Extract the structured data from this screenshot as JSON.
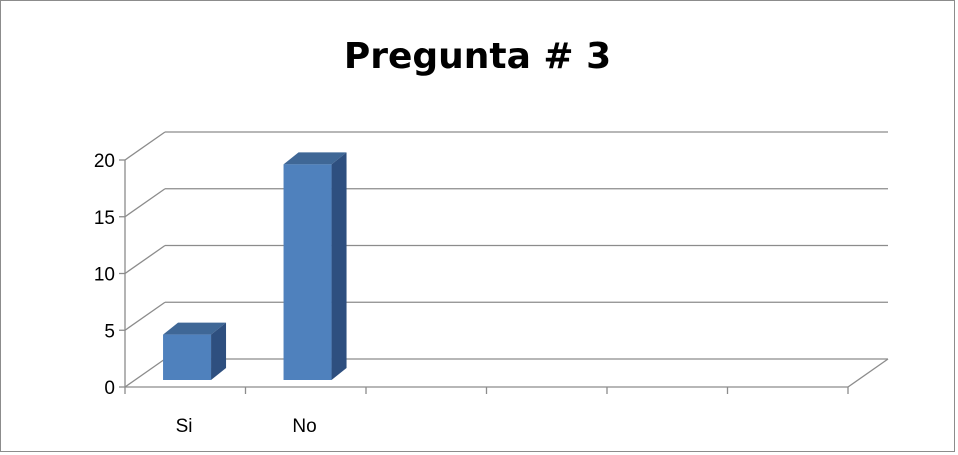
{
  "chart_data": {
    "type": "bar",
    "title": "Pregunta # 3",
    "categories": [
      "Si",
      "No",
      "",
      "",
      "",
      ""
    ],
    "values": [
      4,
      19,
      null,
      null,
      null,
      null
    ],
    "yticks": [
      0,
      5,
      10,
      15,
      20
    ],
    "ylim": [
      0,
      20
    ],
    "xlabel": "",
    "ylabel": "",
    "grid": true,
    "legend": "none",
    "bar_color": "#4f81bd",
    "bar_side_color": "#2e4f7f",
    "bar_top_color": "#3f6796"
  }
}
